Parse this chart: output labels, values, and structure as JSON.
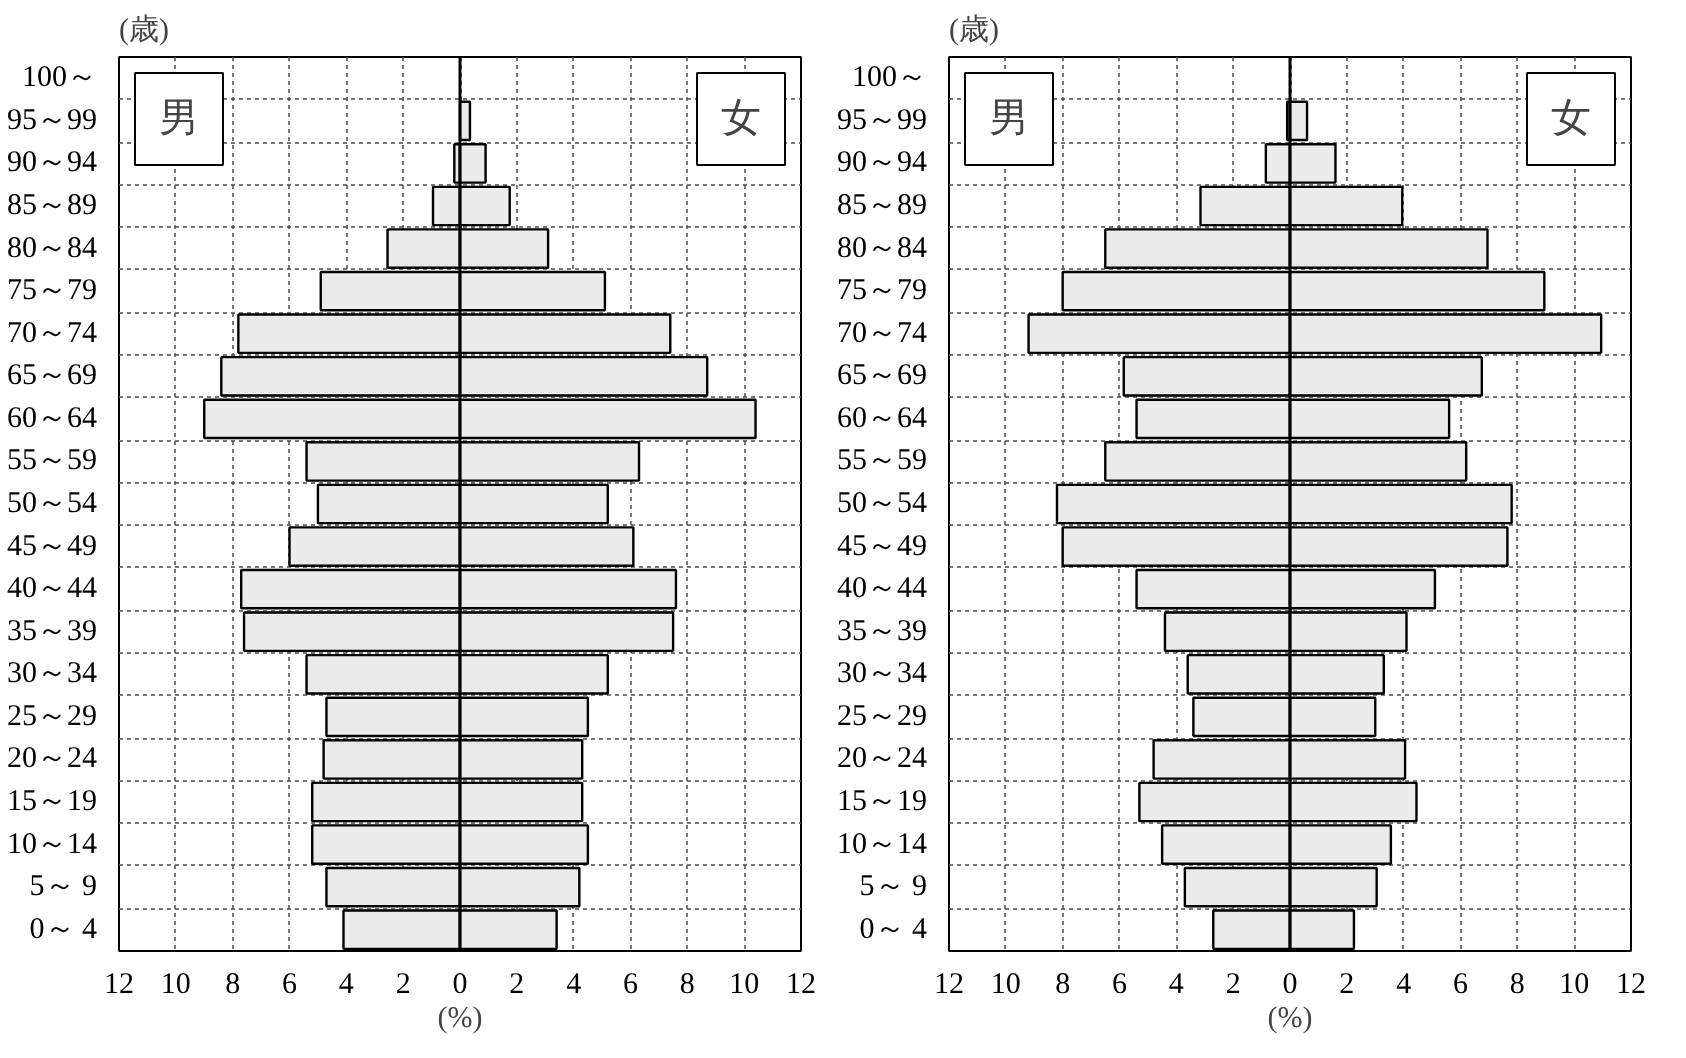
{
  "chart_data": [
    {
      "type": "bar",
      "orientation": "horizontal",
      "xlabel": "(%)",
      "ylabel": "(歳)",
      "categories": [
        "100～",
        "95～99",
        "90～94",
        "85～89",
        "80～84",
        "75～79",
        "70～74",
        "65～69",
        "60～64",
        "55～59",
        "50～54",
        "45～49",
        "40～44",
        "35～39",
        "30～34",
        "25～29",
        "20～24",
        "15～19",
        "10～14",
        "5～ 9",
        "0～ 4"
      ],
      "series": [
        {
          "name": "男",
          "color": "#ebebeb",
          "values": [
            null,
            null,
            -0.2,
            -0.95,
            -2.55,
            -4.9,
            -7.8,
            -8.4,
            -9.0,
            -5.4,
            -5.0,
            -6.0,
            -7.7,
            -7.6,
            -5.4,
            -4.7,
            -4.8,
            -5.2,
            -5.2,
            -4.7,
            -4.1
          ]
        },
        {
          "name": "女",
          "color": "#ebebeb",
          "values": [
            null,
            0.35,
            0.9,
            1.75,
            3.1,
            5.1,
            7.4,
            8.7,
            10.4,
            6.3,
            5.2,
            6.1,
            7.6,
            7.5,
            5.2,
            4.5,
            4.3,
            4.3,
            4.5,
            4.2,
            3.4
          ]
        }
      ],
      "xlim": [
        -12,
        12
      ],
      "xticks": [
        {
          "value": -12,
          "label": "12"
        },
        {
          "value": -10,
          "label": "10"
        },
        {
          "value": -8,
          "label": "8"
        },
        {
          "value": -6,
          "label": "6"
        },
        {
          "value": -4,
          "label": "4"
        },
        {
          "value": -2,
          "label": "2"
        },
        0,
        2,
        4,
        6,
        8,
        10,
        12
      ],
      "stacked": true,
      "grid": true
    },
    {
      "type": "bar",
      "orientation": "horizontal",
      "xlabel": "(%)",
      "ylabel": "(歳)",
      "categories": [
        "100～",
        "95～99",
        "90～94",
        "85～89",
        "80～84",
        "75～79",
        "70～74",
        "65～69",
        "60～64",
        "55～59",
        "50～54",
        "45～49",
        "40～44",
        "35～39",
        "30～34",
        "25～29",
        "20～24",
        "15～19",
        "10～14",
        "5～ 9",
        "0～ 4"
      ],
      "series": [
        {
          "name": "男",
          "color": "#ebebeb",
          "values": [
            null,
            -0.1,
            -0.85,
            -3.15,
            -6.5,
            -8.0,
            -9.2,
            -5.85,
            -5.4,
            -6.5,
            -8.2,
            -8.0,
            -5.4,
            -4.4,
            -3.6,
            -3.4,
            -4.8,
            -5.3,
            -4.5,
            -3.7,
            -2.7
          ]
        },
        {
          "name": "女",
          "color": "#ebebeb",
          "values": [
            null,
            0.6,
            1.6,
            3.95,
            6.95,
            8.95,
            10.95,
            6.75,
            5.6,
            6.2,
            7.8,
            7.65,
            5.1,
            4.1,
            3.3,
            3.0,
            4.05,
            4.45,
            3.55,
            3.05,
            2.25
          ]
        }
      ],
      "xlim": [
        -12,
        12
      ],
      "xticks": [
        {
          "value": -12,
          "label": "12"
        },
        {
          "value": -10,
          "label": "10"
        },
        {
          "value": -8,
          "label": "8"
        },
        {
          "value": -6,
          "label": "6"
        },
        {
          "value": -4,
          "label": "4"
        },
        {
          "value": -2,
          "label": "2"
        },
        0,
        2,
        4,
        6,
        8,
        10,
        12
      ],
      "stacked": true,
      "grid": true
    }
  ]
}
